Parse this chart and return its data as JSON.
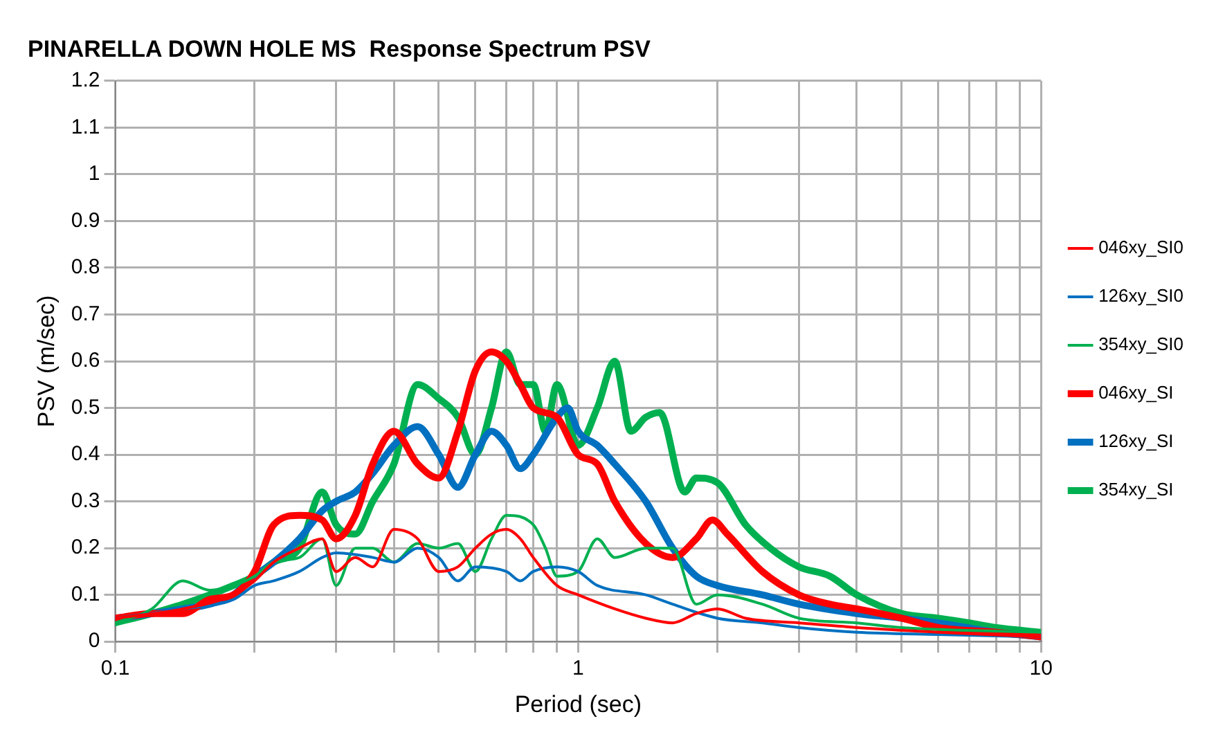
{
  "chart_data": {
    "type": "line",
    "title": "PINARELLA DOWN HOLE MS  Response Spectrum PSV",
    "xlabel": "Period (sec)",
    "ylabel": "PSV (m/sec)",
    "log": "x",
    "xlim": [
      0.1,
      10
    ],
    "xticks": [
      0.1,
      {
        "value": 0.2,
        "label": null
      },
      {
        "value": 0.3,
        "label": null
      },
      {
        "value": 0.4,
        "label": null
      },
      {
        "value": 0.5,
        "label": null
      },
      {
        "value": 0.6,
        "label": null
      },
      {
        "value": 0.7,
        "label": null
      },
      {
        "value": 0.8,
        "label": null
      },
      {
        "value": 0.9,
        "label": null
      },
      1,
      {
        "value": 2,
        "label": null
      },
      {
        "value": 3,
        "label": null
      },
      {
        "value": 4,
        "label": null
      },
      {
        "value": 5,
        "label": null
      },
      {
        "value": 6,
        "label": null
      },
      {
        "value": 7,
        "label": null
      },
      {
        "value": 8,
        "label": null
      },
      {
        "value": 9,
        "label": null
      },
      10
    ],
    "ylim": [
      0,
      1.2
    ],
    "yticks": [
      0,
      0.1,
      0.2,
      0.3,
      0.4,
      0.5,
      0.6,
      0.7,
      0.8,
      0.9,
      1,
      1.1,
      1.2
    ],
    "grid": true,
    "legend": "right",
    "marker": "none",
    "line_style": "solid",
    "series": [
      {
        "name": "046xy_SI0",
        "color": "#ff0000",
        "x": [
          0.1,
          0.14,
          0.18,
          0.2,
          0.22,
          0.25,
          0.28,
          0.3,
          0.33,
          0.36,
          0.4,
          0.45,
          0.5,
          0.55,
          0.6,
          0.65,
          0.7,
          0.75,
          0.8,
          0.9,
          1.0,
          1.2,
          1.4,
          1.6,
          1.8,
          2,
          2.3,
          3,
          4,
          6,
          10
        ],
        "values": [
          0.05,
          0.07,
          0.1,
          0.13,
          0.17,
          0.2,
          0.22,
          0.15,
          0.18,
          0.16,
          0.24,
          0.22,
          0.15,
          0.16,
          0.2,
          0.23,
          0.24,
          0.22,
          0.18,
          0.12,
          0.1,
          0.07,
          0.05,
          0.04,
          0.06,
          0.07,
          0.05,
          0.04,
          0.03,
          0.02,
          0.01
        ]
      },
      {
        "name": "126xy_SI0",
        "color": "#0070c0",
        "x": [
          0.1,
          0.14,
          0.18,
          0.2,
          0.22,
          0.25,
          0.28,
          0.3,
          0.36,
          0.4,
          0.45,
          0.5,
          0.55,
          0.6,
          0.7,
          0.75,
          0.8,
          0.9,
          1.0,
          1.1,
          1.4,
          1.6,
          2,
          2.5,
          3,
          4,
          6,
          10
        ],
        "values": [
          0.05,
          0.07,
          0.09,
          0.12,
          0.13,
          0.15,
          0.18,
          0.19,
          0.18,
          0.17,
          0.2,
          0.18,
          0.13,
          0.16,
          0.15,
          0.13,
          0.15,
          0.16,
          0.15,
          0.12,
          0.1,
          0.08,
          0.05,
          0.04,
          0.03,
          0.02,
          0.015,
          0.01
        ]
      },
      {
        "name": "354xy_SI0",
        "color": "#00b050",
        "x": [
          0.1,
          0.12,
          0.14,
          0.16,
          0.18,
          0.2,
          0.22,
          0.25,
          0.28,
          0.3,
          0.33,
          0.36,
          0.4,
          0.45,
          0.5,
          0.55,
          0.6,
          0.65,
          0.7,
          0.8,
          0.85,
          0.9,
          1.0,
          1.1,
          1.2,
          1.4,
          1.6,
          1.8,
          2,
          2.5,
          3,
          4,
          5,
          10
        ],
        "values": [
          0.04,
          0.07,
          0.13,
          0.11,
          0.12,
          0.14,
          0.17,
          0.18,
          0.22,
          0.12,
          0.2,
          0.2,
          0.17,
          0.21,
          0.2,
          0.21,
          0.15,
          0.22,
          0.27,
          0.25,
          0.2,
          0.14,
          0.15,
          0.22,
          0.18,
          0.2,
          0.2,
          0.08,
          0.1,
          0.08,
          0.05,
          0.04,
          0.03,
          0.02
        ]
      },
      {
        "name": "046xy_SI",
        "color": "#ff0000",
        "x": [
          0.1,
          0.12,
          0.14,
          0.16,
          0.18,
          0.2,
          0.22,
          0.25,
          0.28,
          0.3,
          0.33,
          0.36,
          0.4,
          0.45,
          0.5,
          0.55,
          0.6,
          0.65,
          0.7,
          0.75,
          0.8,
          0.9,
          1.0,
          1.1,
          1.2,
          1.4,
          1.6,
          1.8,
          1.95,
          2.1,
          2.5,
          3,
          3.5,
          4,
          5,
          6,
          8,
          10
        ],
        "values": [
          0.05,
          0.06,
          0.06,
          0.09,
          0.1,
          0.15,
          0.25,
          0.27,
          0.26,
          0.22,
          0.27,
          0.38,
          0.45,
          0.38,
          0.35,
          0.45,
          0.58,
          0.62,
          0.6,
          0.55,
          0.5,
          0.48,
          0.4,
          0.38,
          0.3,
          0.21,
          0.18,
          0.22,
          0.26,
          0.23,
          0.15,
          0.1,
          0.08,
          0.07,
          0.05,
          0.03,
          0.02,
          0.01
        ]
      },
      {
        "name": "126xy_SI",
        "color": "#0070c0",
        "x": [
          0.1,
          0.12,
          0.14,
          0.16,
          0.18,
          0.2,
          0.22,
          0.25,
          0.28,
          0.3,
          0.33,
          0.36,
          0.4,
          0.45,
          0.5,
          0.55,
          0.6,
          0.65,
          0.7,
          0.75,
          0.8,
          0.9,
          0.95,
          1.0,
          1.1,
          1.2,
          1.4,
          1.6,
          1.8,
          2,
          2.5,
          3,
          4,
          5,
          6,
          8,
          10
        ],
        "values": [
          0.05,
          0.06,
          0.07,
          0.08,
          0.1,
          0.14,
          0.17,
          0.22,
          0.28,
          0.3,
          0.32,
          0.36,
          0.42,
          0.46,
          0.4,
          0.33,
          0.4,
          0.45,
          0.42,
          0.37,
          0.4,
          0.48,
          0.5,
          0.45,
          0.42,
          0.38,
          0.3,
          0.2,
          0.14,
          0.12,
          0.1,
          0.08,
          0.06,
          0.05,
          0.04,
          0.02,
          0.01
        ]
      },
      {
        "name": "354xy_SI",
        "color": "#00b050",
        "x": [
          0.1,
          0.12,
          0.14,
          0.16,
          0.18,
          0.2,
          0.22,
          0.25,
          0.28,
          0.3,
          0.33,
          0.36,
          0.4,
          0.45,
          0.5,
          0.55,
          0.6,
          0.65,
          0.7,
          0.75,
          0.8,
          0.85,
          0.9,
          1.0,
          1.1,
          1.2,
          1.3,
          1.4,
          1.5,
          1.7,
          1.8,
          2,
          2.3,
          2.6,
          3,
          3.5,
          4,
          5,
          6,
          7,
          8,
          10
        ],
        "values": [
          0.04,
          0.06,
          0.08,
          0.1,
          0.12,
          0.14,
          0.17,
          0.2,
          0.32,
          0.25,
          0.23,
          0.3,
          0.38,
          0.55,
          0.52,
          0.48,
          0.4,
          0.5,
          0.62,
          0.55,
          0.55,
          0.45,
          0.55,
          0.42,
          0.5,
          0.6,
          0.45,
          0.48,
          0.49,
          0.32,
          0.35,
          0.34,
          0.25,
          0.2,
          0.16,
          0.14,
          0.1,
          0.06,
          0.05,
          0.04,
          0.03,
          0.02
        ]
      }
    ]
  }
}
